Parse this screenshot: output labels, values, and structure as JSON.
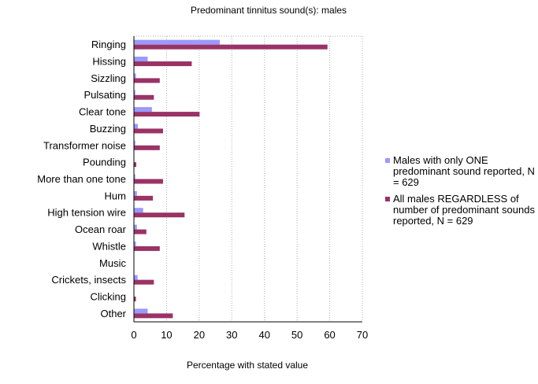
{
  "chart_data": {
    "type": "bar",
    "orientation": "horizontal",
    "title": "Predominant tinnitus sound(s): males",
    "xlabel": "Percentage with stated value",
    "ylabel": "",
    "xlim": [
      0,
      70
    ],
    "xticks": [
      "0",
      "10",
      "20",
      "30",
      "40",
      "50",
      "60",
      "70"
    ],
    "grid": "vertical dotted",
    "legend_position": "right",
    "categories": [
      "Ringing",
      "Hissing",
      "Sizzling",
      "Pulsating",
      "Clear tone",
      "Buzzing",
      "Transformer noise",
      "Pounding",
      "More than one tone",
      "Hum",
      "High tension wire",
      "Ocean roar",
      "Whistle",
      "Music",
      "Crickets, insects",
      "Clicking",
      "Other"
    ],
    "series": [
      {
        "name": "Males with only ONE predominant sound reported, N = 629",
        "color": "#9999ff",
        "values": [
          26.2,
          4.1,
          0.5,
          0.3,
          5.4,
          1.1,
          0.3,
          0.0,
          0.3,
          0.8,
          2.7,
          0.8,
          0.5,
          0.0,
          1.0,
          0.0,
          4.1
        ]
      },
      {
        "name": "All males REGARDLESS of number of predominant sounds reported, N = 629",
        "color": "#993366",
        "values": [
          59.2,
          17.6,
          7.8,
          6.0,
          20.0,
          8.8,
          7.8,
          0.6,
          8.8,
          5.7,
          15.4,
          3.7,
          7.8,
          0.0,
          6.0,
          0.5,
          11.8
        ]
      }
    ]
  }
}
